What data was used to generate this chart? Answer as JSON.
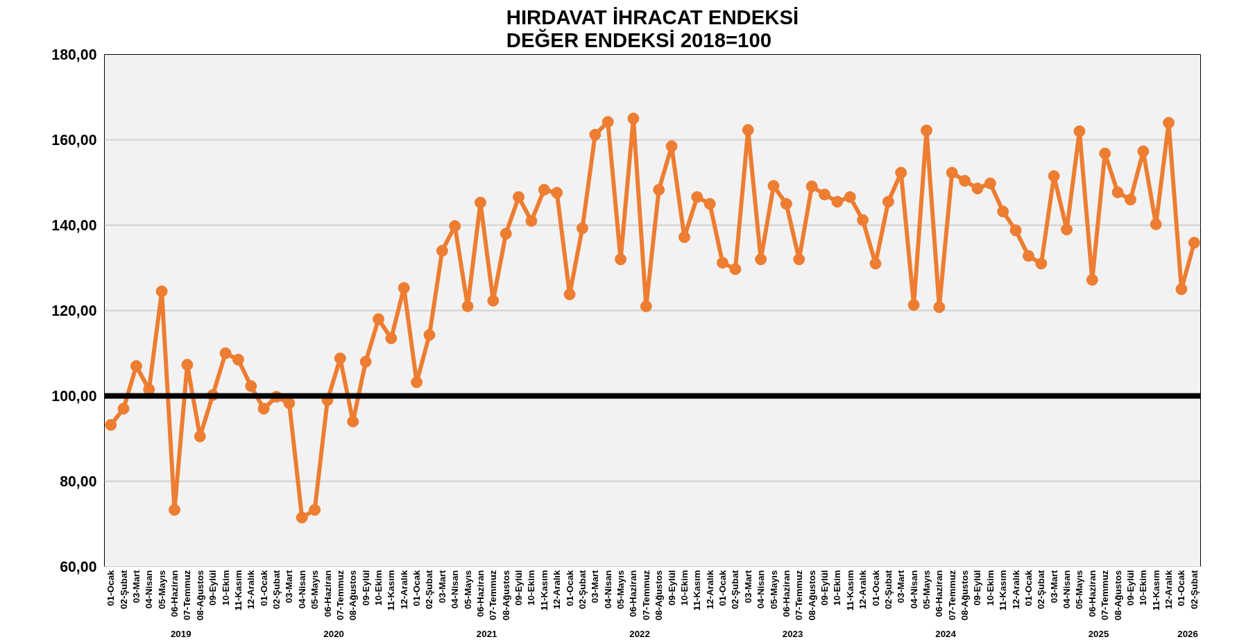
{
  "chart_data": {
    "type": "line",
    "title": "HIRDAVAT İHRACAT ENDEKSİ\nDEĞER ENDEKSİ 2018=100",
    "categories": [
      "01-Ocak",
      "02-Şubat",
      "03-Mart",
      "04-Nisan",
      "05-Mayıs",
      "06-Haziran",
      "07-Temmuz",
      "08-Ağustos",
      "09-Eylül",
      "10-Ekim",
      "11-Kasım",
      "12-Aralık",
      "01-Ocak",
      "02-Şubat",
      "03-Mart",
      "04-Nisan",
      "05-Mayıs",
      "06-Haziran",
      "07-Temmuz",
      "08-Ağustos",
      "09-Eylül",
      "10-Ekim",
      "11-Kasım",
      "12-Aralık",
      "01-Ocak",
      "02-Şubat",
      "03-Mart",
      "04-Nisan",
      "05-Mayıs",
      "06-Haziran",
      "07-Temmuz",
      "08-Ağustos",
      "09-Eylül",
      "10-Ekim",
      "11-Kasım",
      "12-Aralık",
      "01-Ocak",
      "02-Şubat",
      "03-Mart",
      "04-Nisan",
      "05-Mayıs",
      "06-Haziran",
      "07-Temmuz",
      "08-Ağustos",
      "09-Eylül",
      "10-Ekim",
      "11-Kasım",
      "12-Aralık",
      "01-Ocak",
      "02-Şubat",
      "03-Mart",
      "04-Nisan",
      "05-Mayıs",
      "06-Haziran",
      "07-Temmuz",
      "08-Ağustos",
      "09-Eylül",
      "10-Ekim",
      "11-Kasım",
      "12-Aralık",
      "01-Ocak",
      "02-Şubat",
      "03-Mart",
      "04-Nisan",
      "05-Mayıs",
      "06-Haziran",
      "07-Temmuz",
      "08-Ağustos",
      "09-Eylül",
      "10-Ekim",
      "11-Kasım",
      "12-Aralık",
      "01-Ocak",
      "02-Şubat",
      "03-Mart",
      "04-Nisan",
      "05-Mayıs",
      "06-Haziran",
      "07-Temmuz",
      "08-Ağustos",
      "09-Eylül",
      "10-Ekim",
      "11-Kasım",
      "12-Aralık",
      "01-Ocak",
      "02-Şubat"
    ],
    "annotations": [
      "2019",
      "2020",
      "2021",
      "2022",
      "2023",
      "2024",
      "2025",
      "2026"
    ],
    "series": [
      {
        "color": "#ed7d31",
        "values": [
          93.2,
          97,
          107,
          101.5,
          124.5,
          73.3,
          107.3,
          90.5,
          100.2,
          110,
          108.5,
          102.3,
          97,
          99.8,
          98.3,
          71.5,
          73.3,
          99,
          108.8,
          94,
          108,
          118,
          113.5,
          125.3,
          103.2,
          114.3,
          134,
          139.8,
          121,
          145.3,
          122.3,
          138,
          146.6,
          141,
          148.3,
          147.6,
          123.8,
          139.3,
          161.2,
          164.2,
          132,
          165,
          121,
          148.3,
          158.5,
          137.2,
          146.6,
          145,
          131.2,
          129.7,
          162.3,
          132,
          149.2,
          145,
          132,
          149.1,
          147.2,
          145.5,
          146.6,
          141.2,
          131,
          145.5,
          152.3,
          121.3,
          162.2,
          120.8,
          152.3,
          150.4,
          148.6,
          149.8,
          143.2,
          138.8,
          132.8,
          131,
          151.5,
          139,
          162,
          127.2,
          156.8,
          147.7,
          146,
          157.3,
          140.2,
          164,
          125,
          135.9
        ]
      }
    ],
    "ylim": [
      60,
      180
    ],
    "yticks": [
      {
        "value": 60,
        "label": "60,00"
      },
      {
        "value": 80,
        "label": "80,00"
      },
      {
        "value": 100,
        "label": "100,00"
      },
      {
        "value": 120,
        "label": "120,00"
      },
      {
        "value": 140,
        "label": "140,00"
      },
      {
        "value": 160,
        "label": "160,00"
      },
      {
        "value": 180,
        "label": "180,00"
      }
    ],
    "ref_lines": [
      {
        "axis": "y",
        "value": 100,
        "color": "#000000"
      }
    ],
    "grid": "y",
    "marker": "circle",
    "line_style": "solid"
  }
}
